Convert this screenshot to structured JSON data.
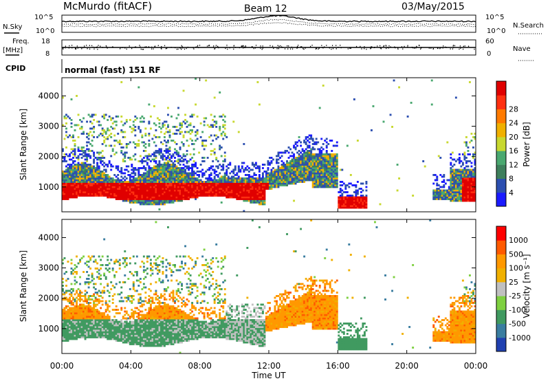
{
  "header": {
    "station": "McMurdo (fitACF)",
    "beam": "Beam 12",
    "date": "03/May/2015"
  },
  "top_panels": {
    "nsky_label": "N.Sky",
    "nsearch_label": "N.Search",
    "noise_ticks": [
      "10^5",
      "10^0"
    ],
    "freq_label": "Freq.",
    "freq_unit": "[MHz]",
    "freq_ticks": [
      "18",
      "8"
    ],
    "nave_label": "Nave",
    "nave_ticks": [
      "60",
      "0"
    ],
    "cpid_label": "CPID",
    "cpid_text": "normal (fast) 151 RF"
  },
  "x_axis": {
    "label": "Time UT",
    "ticks": [
      "00:00",
      "04:00",
      "08:00",
      "12:00",
      "16:00",
      "20:00",
      "00:00"
    ]
  },
  "colors": {
    "power": [
      "#1a1aff",
      "#2c4fb0",
      "#3e7f5c",
      "#4aa870",
      "#c8d830",
      "#f0b000",
      "#ff7a00",
      "#ff3010",
      "#e00000"
    ],
    "velocity": [
      "#ff0000",
      "#ff5a00",
      "#ff9800",
      "#f0b000",
      "#c0c0c0",
      "#7ed040",
      "#409a60",
      "#3a7da0",
      "#2040b0"
    ]
  },
  "chart_data": [
    {
      "type": "heatmap",
      "title": "Power",
      "ylabel": "Slant Range [km]",
      "yticks": [
        1000,
        2000,
        3000,
        4000
      ],
      "ylim": [
        180,
        4600
      ],
      "xlim_hours": [
        0,
        24
      ],
      "colorbar": {
        "label": "Power [dB]",
        "ticks": [
          "4",
          "8",
          "12",
          "16",
          "20",
          "24",
          "28"
        ],
        "range": [
          0,
          32
        ]
      }
    },
    {
      "type": "heatmap",
      "title": "Velocity",
      "ylabel": "Slant Range [km]",
      "yticks": [
        1000,
        2000,
        3000,
        4000
      ],
      "ylim": [
        180,
        4600
      ],
      "xlim_hours": [
        0,
        24
      ],
      "colorbar": {
        "label": "Velocity [m s⁻¹]",
        "ticks": [
          "1000",
          "500",
          "100",
          "25",
          "-25",
          "-100",
          "-500",
          "-1000"
        ]
      }
    }
  ]
}
